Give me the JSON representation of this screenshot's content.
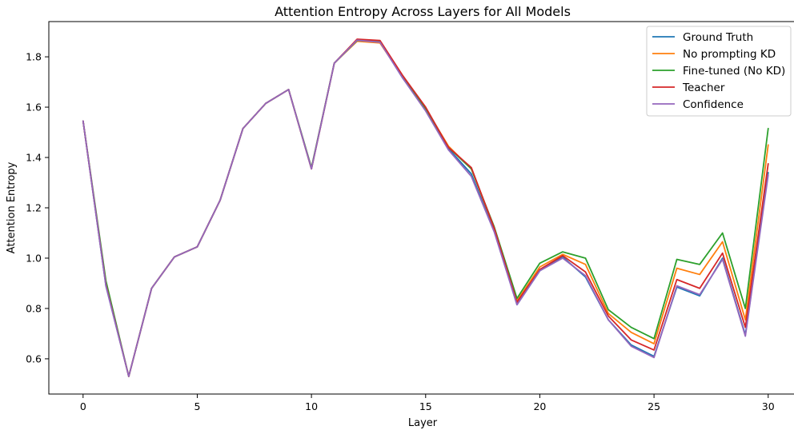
{
  "chart_data": {
    "type": "line",
    "title": "Attention Entropy Across Layers for All Models",
    "xlabel": "Layer",
    "ylabel": "Attention Entropy",
    "xlim": [
      -1.5,
      31.2
    ],
    "ylim": [
      0.46,
      1.94
    ],
    "xticks": [
      0,
      5,
      10,
      15,
      20,
      25,
      30
    ],
    "yticks": [
      0.6,
      0.8,
      1.0,
      1.2,
      1.4,
      1.6,
      1.8
    ],
    "ytick_labels": [
      "0.6",
      "0.8",
      "1.0",
      "1.2",
      "1.4",
      "1.6",
      "1.8"
    ],
    "grid": false,
    "legend_position": "top-right",
    "x": [
      0,
      1,
      2,
      3,
      4,
      5,
      6,
      7,
      8,
      9,
      10,
      11,
      12,
      13,
      14,
      15,
      16,
      17,
      18,
      19,
      20,
      21,
      22,
      23,
      24,
      25,
      26,
      27,
      28,
      29,
      30
    ],
    "series": [
      {
        "name": "Ground Truth",
        "color": "#1f77b4",
        "values": [
          1.545,
          0.89,
          0.53,
          0.88,
          1.005,
          1.045,
          1.23,
          1.515,
          1.615,
          1.67,
          1.355,
          1.775,
          1.868,
          1.86,
          1.715,
          1.59,
          1.435,
          1.335,
          1.11,
          0.815,
          0.95,
          1.005,
          0.925,
          0.755,
          0.655,
          0.61,
          0.885,
          0.85,
          1.0,
          0.695,
          1.34
        ]
      },
      {
        "name": "No prompting KD",
        "color": "#ff7f0e",
        "values": [
          1.545,
          0.895,
          0.53,
          0.88,
          1.005,
          1.045,
          1.23,
          1.515,
          1.615,
          1.67,
          1.355,
          1.775,
          1.862,
          1.855,
          1.72,
          1.595,
          1.445,
          1.355,
          1.12,
          0.83,
          0.965,
          1.015,
          0.975,
          0.78,
          0.705,
          0.66,
          0.96,
          0.935,
          1.065,
          0.755,
          1.45
        ]
      },
      {
        "name": "Fine-tuned (No KD)",
        "color": "#2ca02c",
        "values": [
          1.545,
          0.91,
          0.53,
          0.88,
          1.005,
          1.045,
          1.23,
          1.515,
          1.615,
          1.67,
          1.36,
          1.775,
          1.865,
          1.862,
          1.72,
          1.595,
          1.44,
          1.355,
          1.125,
          0.84,
          0.98,
          1.025,
          1.0,
          0.795,
          0.725,
          0.68,
          0.995,
          0.975,
          1.1,
          0.8,
          1.515
        ]
      },
      {
        "name": "Teacher",
        "color": "#d62728",
        "values": [
          1.545,
          0.895,
          0.53,
          0.88,
          1.005,
          1.045,
          1.23,
          1.515,
          1.615,
          1.67,
          1.355,
          1.775,
          1.87,
          1.865,
          1.725,
          1.6,
          1.44,
          1.36,
          1.12,
          0.825,
          0.955,
          1.01,
          0.945,
          0.77,
          0.675,
          0.635,
          0.915,
          0.88,
          1.02,
          0.725,
          1.375
        ]
      },
      {
        "name": "Confidence",
        "color": "#9467bd",
        "values": [
          1.545,
          0.89,
          0.53,
          0.88,
          1.005,
          1.045,
          1.23,
          1.515,
          1.615,
          1.67,
          1.355,
          1.775,
          1.866,
          1.858,
          1.715,
          1.585,
          1.43,
          1.325,
          1.105,
          0.815,
          0.95,
          1.0,
          0.93,
          0.755,
          0.65,
          0.605,
          0.89,
          0.855,
          0.995,
          0.69,
          1.33
        ]
      }
    ]
  }
}
